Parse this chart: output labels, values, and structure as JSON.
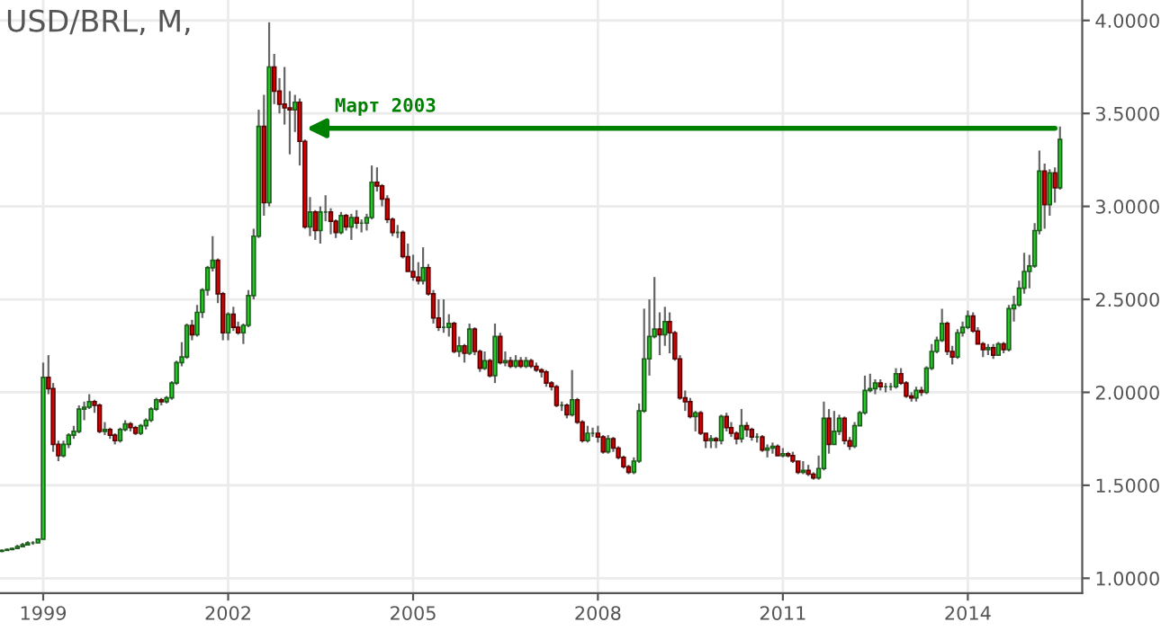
{
  "chart_data": {
    "type": "candlestick",
    "title": "USD/BRL, M,",
    "x": [
      "1998-05",
      "1998-06",
      "1998-07",
      "1998-08",
      "1998-09",
      "1998-10",
      "1998-11",
      "1998-12",
      "1999-01",
      "1999-02",
      "1999-03",
      "1999-04",
      "1999-05",
      "1999-06",
      "1999-07",
      "1999-08",
      "1999-09",
      "1999-10",
      "1999-11",
      "1999-12",
      "2000-01",
      "2000-02",
      "2000-03",
      "2000-04",
      "2000-05",
      "2000-06",
      "2000-07",
      "2000-08",
      "2000-09",
      "2000-10",
      "2000-11",
      "2000-12",
      "2001-01",
      "2001-02",
      "2001-03",
      "2001-04",
      "2001-05",
      "2001-06",
      "2001-07",
      "2001-08",
      "2001-09",
      "2001-10",
      "2001-11",
      "2001-12",
      "2002-01",
      "2002-02",
      "2002-03",
      "2002-04",
      "2002-05",
      "2002-06",
      "2002-07",
      "2002-08",
      "2002-09",
      "2002-10",
      "2002-11",
      "2002-12",
      "2003-01",
      "2003-02",
      "2003-03",
      "2003-04",
      "2003-05",
      "2003-06",
      "2003-07",
      "2003-08",
      "2003-09",
      "2003-10",
      "2003-11",
      "2003-12",
      "2004-01",
      "2004-02",
      "2004-03",
      "2004-04",
      "2004-05",
      "2004-06",
      "2004-07",
      "2004-08",
      "2004-09",
      "2004-10",
      "2004-11",
      "2004-12",
      "2005-01",
      "2005-02",
      "2005-03",
      "2005-04",
      "2005-05",
      "2005-06",
      "2005-07",
      "2005-08",
      "2005-09",
      "2005-10",
      "2005-11",
      "2005-12",
      "2006-01",
      "2006-02",
      "2006-03",
      "2006-04",
      "2006-05",
      "2006-06",
      "2006-07",
      "2006-08",
      "2006-09",
      "2006-10",
      "2006-11",
      "2006-12",
      "2007-01",
      "2007-02",
      "2007-03",
      "2007-04",
      "2007-05",
      "2007-06",
      "2007-07",
      "2007-08",
      "2007-09",
      "2007-10",
      "2007-11",
      "2007-12",
      "2008-01",
      "2008-02",
      "2008-03",
      "2008-04",
      "2008-05",
      "2008-06",
      "2008-07",
      "2008-08",
      "2008-09",
      "2008-10",
      "2008-11",
      "2008-12",
      "2009-01",
      "2009-02",
      "2009-03",
      "2009-04",
      "2009-05",
      "2009-06",
      "2009-07",
      "2009-08",
      "2009-09",
      "2009-10",
      "2009-11",
      "2009-12",
      "2010-01",
      "2010-02",
      "2010-03",
      "2010-04",
      "2010-05",
      "2010-06",
      "2010-07",
      "2010-08",
      "2010-09",
      "2010-10",
      "2010-11",
      "2010-12",
      "2011-01",
      "2011-02",
      "2011-03",
      "2011-04",
      "2011-05",
      "2011-06",
      "2011-07",
      "2011-08",
      "2011-09",
      "2011-10",
      "2011-11",
      "2011-12",
      "2012-01",
      "2012-02",
      "2012-03",
      "2012-04",
      "2012-05",
      "2012-06",
      "2012-07",
      "2012-08",
      "2012-09",
      "2012-10",
      "2012-11",
      "2012-12",
      "2013-01",
      "2013-02",
      "2013-03",
      "2013-04",
      "2013-05",
      "2013-06",
      "2013-07",
      "2013-08",
      "2013-09",
      "2013-10",
      "2013-11",
      "2013-12",
      "2014-01",
      "2014-02",
      "2014-03",
      "2014-04",
      "2014-05",
      "2014-06",
      "2014-07",
      "2014-08",
      "2014-09",
      "2014-10",
      "2014-11",
      "2014-12",
      "2015-01",
      "2015-02",
      "2015-03",
      "2015-04",
      "2015-05",
      "2015-06",
      "2015-07"
    ],
    "ohlc": [
      [
        1.145,
        1.155,
        1.14,
        1.15
      ],
      [
        1.15,
        1.16,
        1.15,
        1.155
      ],
      [
        1.155,
        1.165,
        1.15,
        1.16
      ],
      [
        1.16,
        1.18,
        1.16,
        1.17
      ],
      [
        1.17,
        1.19,
        1.17,
        1.18
      ],
      [
        1.18,
        1.2,
        1.18,
        1.19
      ],
      [
        1.19,
        1.2,
        1.18,
        1.19
      ],
      [
        1.19,
        1.21,
        1.19,
        1.21
      ],
      [
        1.21,
        2.16,
        1.21,
        2.08
      ],
      [
        2.08,
        2.2,
        1.99,
        2.02
      ],
      [
        2.02,
        2.05,
        1.68,
        1.72
      ],
      [
        1.72,
        1.74,
        1.63,
        1.66
      ],
      [
        1.66,
        1.74,
        1.65,
        1.72
      ],
      [
        1.72,
        1.78,
        1.7,
        1.77
      ],
      [
        1.77,
        1.82,
        1.75,
        1.79
      ],
      [
        1.79,
        1.93,
        1.78,
        1.91
      ],
      [
        1.91,
        1.95,
        1.85,
        1.92
      ],
      [
        1.92,
        1.99,
        1.91,
        1.95
      ],
      [
        1.95,
        1.96,
        1.89,
        1.93
      ],
      [
        1.93,
        1.94,
        1.78,
        1.79
      ],
      [
        1.79,
        1.84,
        1.77,
        1.8
      ],
      [
        1.8,
        1.81,
        1.75,
        1.77
      ],
      [
        1.77,
        1.78,
        1.72,
        1.74
      ],
      [
        1.74,
        1.81,
        1.73,
        1.8
      ],
      [
        1.8,
        1.85,
        1.79,
        1.83
      ],
      [
        1.83,
        1.84,
        1.79,
        1.81
      ],
      [
        1.81,
        1.82,
        1.77,
        1.78
      ],
      [
        1.78,
        1.83,
        1.77,
        1.82
      ],
      [
        1.82,
        1.86,
        1.8,
        1.85
      ],
      [
        1.85,
        1.92,
        1.84,
        1.91
      ],
      [
        1.91,
        1.97,
        1.9,
        1.96
      ],
      [
        1.96,
        1.97,
        1.93,
        1.95
      ],
      [
        1.95,
        1.98,
        1.94,
        1.97
      ],
      [
        1.97,
        2.06,
        1.96,
        2.05
      ],
      [
        2.05,
        2.17,
        2.04,
        2.16
      ],
      [
        2.16,
        2.27,
        2.14,
        2.19
      ],
      [
        2.19,
        2.37,
        2.18,
        2.36
      ],
      [
        2.36,
        2.39,
        2.28,
        2.31
      ],
      [
        2.31,
        2.47,
        2.3,
        2.43
      ],
      [
        2.43,
        2.56,
        2.4,
        2.55
      ],
      [
        2.55,
        2.68,
        2.52,
        2.67
      ],
      [
        2.67,
        2.84,
        2.65,
        2.71
      ],
      [
        2.71,
        2.72,
        2.48,
        2.53
      ],
      [
        2.53,
        2.54,
        2.28,
        2.32
      ],
      [
        2.32,
        2.43,
        2.28,
        2.42
      ],
      [
        2.42,
        2.46,
        2.33,
        2.35
      ],
      [
        2.35,
        2.38,
        2.31,
        2.32
      ],
      [
        2.32,
        2.37,
        2.26,
        2.36
      ],
      [
        2.36,
        2.55,
        2.35,
        2.52
      ],
      [
        2.52,
        2.88,
        2.5,
        2.84
      ],
      [
        2.84,
        3.52,
        2.83,
        3.43
      ],
      [
        3.43,
        3.6,
        2.95,
        3.02
      ],
      [
        3.02,
        3.99,
        3.0,
        3.75
      ],
      [
        3.75,
        3.82,
        3.55,
        3.62
      ],
      [
        3.62,
        3.69,
        3.5,
        3.55
      ],
      [
        3.55,
        3.75,
        3.44,
        3.53
      ],
      [
        3.53,
        3.62,
        3.28,
        3.52
      ],
      [
        3.52,
        3.6,
        3.4,
        3.56
      ],
      [
        3.56,
        3.58,
        3.22,
        3.35
      ],
      [
        3.35,
        3.36,
        2.88,
        2.89
      ],
      [
        2.89,
        3.05,
        2.84,
        2.97
      ],
      [
        2.97,
        2.98,
        2.82,
        2.87
      ],
      [
        2.87,
        3.0,
        2.8,
        2.97
      ],
      [
        2.97,
        3.06,
        2.92,
        2.97
      ],
      [
        2.97,
        2.99,
        2.85,
        2.92
      ],
      [
        2.92,
        2.93,
        2.83,
        2.86
      ],
      [
        2.86,
        2.97,
        2.85,
        2.95
      ],
      [
        2.95,
        2.96,
        2.87,
        2.89
      ],
      [
        2.89,
        2.96,
        2.82,
        2.94
      ],
      [
        2.94,
        2.98,
        2.88,
        2.91
      ],
      [
        2.91,
        2.93,
        2.86,
        2.91
      ],
      [
        2.91,
        2.96,
        2.87,
        2.94
      ],
      [
        2.94,
        3.22,
        2.93,
        3.13
      ],
      [
        3.13,
        3.21,
        3.08,
        3.11
      ],
      [
        3.11,
        3.12,
        3.0,
        3.04
      ],
      [
        3.04,
        3.06,
        2.91,
        2.93
      ],
      [
        2.93,
        2.94,
        2.84,
        2.86
      ],
      [
        2.86,
        2.9,
        2.83,
        2.86
      ],
      [
        2.86,
        2.87,
        2.72,
        2.73
      ],
      [
        2.73,
        2.8,
        2.65,
        2.65
      ],
      [
        2.65,
        2.74,
        2.6,
        2.62
      ],
      [
        2.62,
        2.7,
        2.58,
        2.6
      ],
      [
        2.6,
        2.78,
        2.58,
        2.67
      ],
      [
        2.67,
        2.69,
        2.52,
        2.53
      ],
      [
        2.53,
        2.55,
        2.37,
        2.4
      ],
      [
        2.4,
        2.5,
        2.33,
        2.35
      ],
      [
        2.35,
        2.5,
        2.32,
        2.35
      ],
      [
        2.35,
        2.42,
        2.3,
        2.37
      ],
      [
        2.37,
        2.38,
        2.21,
        2.22
      ],
      [
        2.22,
        2.3,
        2.19,
        2.25
      ],
      [
        2.25,
        2.26,
        2.16,
        2.21
      ],
      [
        2.21,
        2.37,
        2.2,
        2.34
      ],
      [
        2.34,
        2.35,
        2.2,
        2.22
      ],
      [
        2.22,
        2.23,
        2.11,
        2.13
      ],
      [
        2.13,
        2.22,
        2.12,
        2.17
      ],
      [
        2.17,
        2.18,
        2.08,
        2.09
      ],
      [
        2.09,
        2.37,
        2.05,
        2.3
      ],
      [
        2.3,
        2.32,
        2.15,
        2.16
      ],
      [
        2.16,
        2.22,
        2.14,
        2.17
      ],
      [
        2.17,
        2.19,
        2.13,
        2.14
      ],
      [
        2.14,
        2.2,
        2.13,
        2.17
      ],
      [
        2.17,
        2.19,
        2.13,
        2.14
      ],
      [
        2.14,
        2.19,
        2.13,
        2.17
      ],
      [
        2.17,
        2.18,
        2.13,
        2.14
      ],
      [
        2.14,
        2.16,
        2.11,
        2.12
      ],
      [
        2.12,
        2.13,
        2.08,
        2.11
      ],
      [
        2.11,
        2.12,
        2.03,
        2.05
      ],
      [
        2.05,
        2.06,
        2.01,
        2.03
      ],
      [
        2.03,
        2.04,
        1.92,
        1.93
      ],
      [
        1.93,
        1.95,
        1.9,
        1.93
      ],
      [
        1.93,
        1.94,
        1.86,
        1.88
      ],
      [
        1.88,
        2.12,
        1.87,
        1.96
      ],
      [
        1.96,
        1.97,
        1.83,
        1.84
      ],
      [
        1.84,
        1.85,
        1.73,
        1.74
      ],
      [
        1.74,
        1.82,
        1.73,
        1.78
      ],
      [
        1.78,
        1.81,
        1.76,
        1.78
      ],
      [
        1.78,
        1.82,
        1.73,
        1.76
      ],
      [
        1.76,
        1.77,
        1.67,
        1.68
      ],
      [
        1.68,
        1.77,
        1.67,
        1.75
      ],
      [
        1.75,
        1.76,
        1.68,
        1.7
      ],
      [
        1.7,
        1.71,
        1.64,
        1.65
      ],
      [
        1.65,
        1.66,
        1.59,
        1.6
      ],
      [
        1.6,
        1.61,
        1.56,
        1.57
      ],
      [
        1.57,
        1.65,
        1.56,
        1.63
      ],
      [
        1.63,
        1.94,
        1.62,
        1.9
      ],
      [
        1.9,
        2.45,
        1.89,
        2.18
      ],
      [
        2.18,
        2.5,
        2.09,
        2.3
      ],
      [
        2.3,
        2.62,
        2.29,
        2.34
      ],
      [
        2.34,
        2.43,
        2.2,
        2.31
      ],
      [
        2.31,
        2.46,
        2.25,
        2.38
      ],
      [
        2.38,
        2.43,
        2.21,
        2.32
      ],
      [
        2.32,
        2.33,
        2.17,
        2.18
      ],
      [
        2.18,
        2.2,
        1.96,
        1.97
      ],
      [
        1.97,
        2.01,
        1.9,
        1.95
      ],
      [
        1.95,
        1.97,
        1.86,
        1.87
      ],
      [
        1.87,
        1.9,
        1.79,
        1.89
      ],
      [
        1.89,
        1.9,
        1.77,
        1.78
      ],
      [
        1.78,
        1.78,
        1.7,
        1.74
      ],
      [
        1.74,
        1.77,
        1.7,
        1.75
      ],
      [
        1.75,
        1.76,
        1.7,
        1.74
      ],
      [
        1.74,
        1.88,
        1.72,
        1.87
      ],
      [
        1.87,
        1.89,
        1.79,
        1.81
      ],
      [
        1.81,
        1.84,
        1.76,
        1.78
      ],
      [
        1.78,
        1.79,
        1.72,
        1.75
      ],
      [
        1.75,
        1.91,
        1.73,
        1.82
      ],
      [
        1.82,
        1.84,
        1.76,
        1.8
      ],
      [
        1.8,
        1.81,
        1.74,
        1.76
      ],
      [
        1.76,
        1.78,
        1.73,
        1.76
      ],
      [
        1.76,
        1.77,
        1.68,
        1.69
      ],
      [
        1.69,
        1.72,
        1.65,
        1.7
      ],
      [
        1.7,
        1.73,
        1.67,
        1.71
      ],
      [
        1.71,
        1.72,
        1.66,
        1.66
      ],
      [
        1.66,
        1.7,
        1.65,
        1.67
      ],
      [
        1.67,
        1.68,
        1.65,
        1.66
      ],
      [
        1.66,
        1.68,
        1.62,
        1.63
      ],
      [
        1.63,
        1.63,
        1.56,
        1.57
      ],
      [
        1.57,
        1.63,
        1.56,
        1.58
      ],
      [
        1.58,
        1.61,
        1.55,
        1.56
      ],
      [
        1.56,
        1.57,
        1.53,
        1.54
      ],
      [
        1.54,
        1.66,
        1.53,
        1.59
      ],
      [
        1.59,
        1.95,
        1.58,
        1.86
      ],
      [
        1.86,
        1.91,
        1.67,
        1.72
      ],
      [
        1.72,
        1.9,
        1.72,
        1.79
      ],
      [
        1.79,
        1.88,
        1.77,
        1.86
      ],
      [
        1.86,
        1.87,
        1.72,
        1.74
      ],
      [
        1.74,
        1.76,
        1.69,
        1.71
      ],
      [
        1.71,
        1.84,
        1.7,
        1.82
      ],
      [
        1.82,
        1.9,
        1.82,
        1.89
      ],
      [
        1.89,
        2.09,
        1.88,
        2.01
      ],
      [
        2.01,
        2.1,
        2.0,
        2.02
      ],
      [
        2.02,
        2.07,
        1.99,
        2.05
      ],
      [
        2.05,
        2.07,
        2.01,
        2.03
      ],
      [
        2.03,
        2.05,
        2.0,
        2.03
      ],
      [
        2.03,
        2.05,
        2.01,
        2.03
      ],
      [
        2.03,
        2.13,
        2.02,
        2.1
      ],
      [
        2.1,
        2.13,
        2.04,
        2.05
      ],
      [
        2.05,
        2.06,
        1.97,
        1.98
      ],
      [
        1.98,
        2.0,
        1.95,
        1.97
      ],
      [
        1.97,
        2.03,
        1.95,
        2.01
      ],
      [
        2.01,
        2.03,
        1.98,
        2.0
      ],
      [
        2.0,
        2.14,
        1.99,
        2.13
      ],
      [
        2.13,
        2.26,
        2.12,
        2.22
      ],
      [
        2.22,
        2.3,
        2.21,
        2.28
      ],
      [
        2.28,
        2.45,
        2.27,
        2.37
      ],
      [
        2.37,
        2.38,
        2.2,
        2.22
      ],
      [
        2.22,
        2.25,
        2.15,
        2.19
      ],
      [
        2.19,
        2.34,
        2.18,
        2.32
      ],
      [
        2.32,
        2.38,
        2.3,
        2.35
      ],
      [
        2.35,
        2.44,
        2.34,
        2.41
      ],
      [
        2.41,
        2.43,
        2.32,
        2.33
      ],
      [
        2.33,
        2.35,
        2.26,
        2.26
      ],
      [
        2.26,
        2.27,
        2.19,
        2.23
      ],
      [
        2.23,
        2.26,
        2.2,
        2.24
      ],
      [
        2.24,
        2.26,
        2.18,
        2.2
      ],
      [
        2.2,
        2.27,
        2.2,
        2.26
      ],
      [
        2.26,
        2.27,
        2.21,
        2.23
      ],
      [
        2.23,
        2.47,
        2.22,
        2.45
      ],
      [
        2.45,
        2.52,
        2.38,
        2.47
      ],
      [
        2.47,
        2.6,
        2.46,
        2.56
      ],
      [
        2.56,
        2.75,
        2.53,
        2.65
      ],
      [
        2.65,
        2.74,
        2.56,
        2.68
      ],
      [
        2.68,
        2.91,
        2.67,
        2.87
      ],
      [
        2.87,
        3.3,
        2.85,
        3.19
      ],
      [
        3.19,
        3.23,
        2.88,
        3.01
      ],
      [
        3.01,
        3.2,
        2.95,
        3.18
      ],
      [
        3.18,
        3.21,
        3.02,
        3.1
      ],
      [
        3.1,
        3.43,
        3.09,
        3.36
      ]
    ],
    "xlim": [
      "1998-04-20",
      "2015-11-10"
    ],
    "xticks": [
      {
        "value": "1999-01",
        "label": "1999"
      },
      {
        "value": "2002-01",
        "label": "2002"
      },
      {
        "value": "2005-01",
        "label": "2005"
      },
      {
        "value": "2008-01",
        "label": "2008"
      },
      {
        "value": "2011-01",
        "label": "2011"
      },
      {
        "value": "2014-01",
        "label": "2014"
      }
    ],
    "ylim": [
      0.92,
      4.11
    ],
    "yticks": [
      {
        "value": 1.0,
        "label": "1.0000"
      },
      {
        "value": 1.5,
        "label": "1.5000"
      },
      {
        "value": 2.0,
        "label": "2.0000"
      },
      {
        "value": 2.5,
        "label": "2.5000"
      },
      {
        "value": 3.0,
        "label": "3.0000"
      },
      {
        "value": 3.5,
        "label": "3.5000"
      },
      {
        "value": 4.0,
        "label": "4.0000"
      }
    ],
    "grid": true,
    "annotations": [
      {
        "text": "Март 2003",
        "x": "2003-03",
        "y": 3.42
      }
    ]
  }
}
